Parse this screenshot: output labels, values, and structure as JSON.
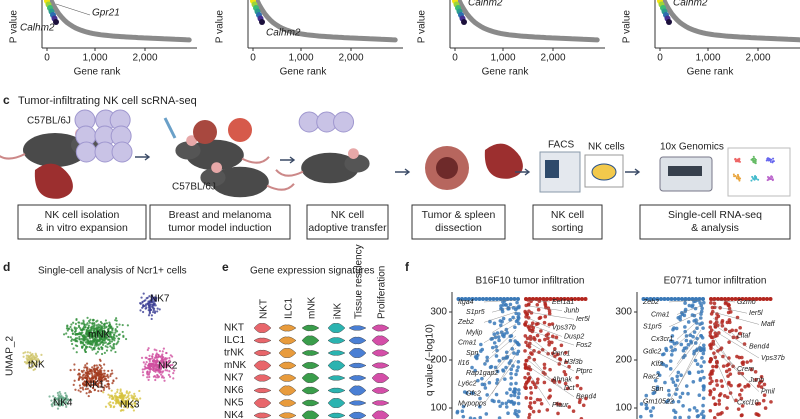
{
  "rank_plots": [
    {
      "y_label": "P value",
      "genes": [
        "Gpr21",
        "Calhm2"
      ],
      "x_ticks": [
        "0",
        "1,000",
        "2,000"
      ],
      "x_label": "Gene rank"
    },
    {
      "y_label": "P value",
      "genes": [
        "Calhm2"
      ],
      "x_ticks": [
        "0",
        "1,000",
        "2,000"
      ],
      "x_label": "Gene rank"
    },
    {
      "y_label": "P value",
      "genes": [
        "Calhm2"
      ],
      "x_ticks": [
        "0",
        "1,000",
        "2,000"
      ],
      "x_label": "Gene rank"
    },
    {
      "y_label": "P value",
      "genes": [
        "Calhm2"
      ],
      "x_ticks": [
        "0",
        "1,000",
        "2,000"
      ],
      "x_label": "Gene rank"
    }
  ],
  "panel_c": {
    "letter": "c",
    "title": "Tumor-infiltrating NK cell scRNA-seq",
    "labels": [
      "C57BL/6J",
      "C57BL/6J",
      "FACS",
      "NK cells",
      "10x Genomics"
    ],
    "steps": [
      [
        "NK cell isolation",
        "& in vitro expansion"
      ],
      [
        "Breast and melanoma",
        "tumor model induction"
      ],
      [
        "NK cell",
        "adoptive transfer"
      ],
      [
        "Tumor & spleen",
        "dissection"
      ],
      [
        "NK cell",
        "sorting"
      ],
      [
        "Single-cell RNA-seq",
        "& analysis"
      ]
    ]
  },
  "panel_d": {
    "letter": "d",
    "title": "Single-cell analysis of Ncr1+ cells",
    "y_label": "UMAP_2",
    "clusters": [
      "mNK",
      "NK7",
      "NK1",
      "NK2",
      "tNK",
      "NK4",
      "NK3"
    ]
  },
  "panel_e": {
    "letter": "e",
    "title": "Gene expression signatures",
    "columns": [
      "NKT",
      "ILC1",
      "mNK",
      "iNK",
      "Tissue residency",
      "Proliferation"
    ],
    "rows": [
      "NKT",
      "ILC1",
      "trNK",
      "mNK",
      "NK7",
      "NK6",
      "NK5",
      "NK4"
    ]
  },
  "panel_f": {
    "letter": "f",
    "y_label": "q value (−log10)",
    "y_ticks": [
      "300",
      "200",
      "100"
    ],
    "plots": [
      {
        "title": "B16F10 tumor infiltration",
        "down_genes": [
          "Itga4",
          "S1pr5",
          "Zeb2",
          "Mylip",
          "Cma1",
          "Spn",
          "Il16",
          "Rap1gap2",
          "Ly6c2",
          "Gfs2",
          "Mypopps"
        ],
        "up_genes": [
          "Eef1a1",
          "Junb",
          "Ier5l",
          "Vps37b",
          "Dusp2",
          "Fos2",
          "Pnrc1",
          "H3f3b",
          "Ptprc",
          "Ahnak",
          "Dct",
          "Bend4",
          "Plaur"
        ]
      },
      {
        "title": "E0771 tumor infiltration",
        "down_genes": [
          "Zeb2",
          "Cma1",
          "S1pr5",
          "Cx3cr1",
          "Gdic2",
          "Klf2",
          "Rac2",
          "Spn",
          "Gm10522"
        ],
        "up_genes": [
          "Gzmo",
          "Ier5l",
          "Maff",
          "Litaf",
          "Bend4",
          "Vps37b",
          "Crem",
          "Junb",
          "Pmil",
          "Cxcl10"
        ]
      }
    ]
  }
}
